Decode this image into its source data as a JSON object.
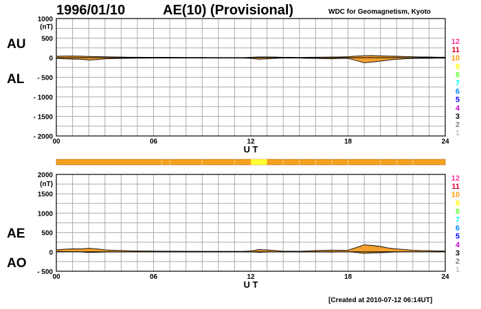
{
  "header": {
    "date": "1996/01/10",
    "title": "AE(10) (Provisional)",
    "org": "WDC for Geomagnetism, Kyoto",
    "created": "[Created at 2010-07-12 06:14UT]"
  },
  "colors": {
    "fill": "#f4a030",
    "grid": "#aaaaaa",
    "bar": "#f5a020",
    "bar_highlight": "#ffff33"
  },
  "legend_numbers": [
    {
      "label": "12",
      "color": "#ff3399"
    },
    {
      "label": "11",
      "color": "#e0002a"
    },
    {
      "label": "10",
      "color": "#ff9900"
    },
    {
      "label": "9",
      "color": "#ffff00"
    },
    {
      "label": "8",
      "color": "#66ff33"
    },
    {
      "label": "7",
      "color": "#00ffff"
    },
    {
      "label": "6",
      "color": "#0088ff"
    },
    {
      "label": "5",
      "color": "#0000ff"
    },
    {
      "label": "4",
      "color": "#cc00cc"
    },
    {
      "label": "3",
      "color": "#000000"
    },
    {
      "label": "2",
      "color": "#808080"
    },
    {
      "label": "1",
      "color": "#c0c0c0"
    }
  ],
  "chart_data": [
    {
      "type": "area",
      "series": [
        {
          "name": "AU",
          "values": [
            35,
            40,
            42,
            38,
            32,
            28,
            22,
            18,
            15,
            13,
            12,
            10,
            9,
            8,
            8,
            7,
            6,
            5,
            5,
            4,
            4,
            4,
            4,
            4,
            10,
            18,
            20,
            15,
            8,
            8,
            6,
            10,
            12,
            14,
            16,
            20,
            25,
            40,
            50,
            55,
            48,
            40,
            35,
            30,
            22,
            20,
            18,
            12,
            12
          ]
        },
        {
          "name": "AL",
          "values": [
            -15,
            -30,
            -35,
            -40,
            -60,
            -50,
            -30,
            -25,
            -20,
            -15,
            -12,
            -12,
            -10,
            -10,
            -10,
            -10,
            -10,
            -10,
            -8,
            -8,
            -8,
            -8,
            -8,
            -8,
            -15,
            -40,
            -30,
            -20,
            -10,
            -10,
            -10,
            -15,
            -20,
            -25,
            -30,
            -20,
            -20,
            -70,
            -130,
            -110,
            -90,
            -60,
            -40,
            -30,
            -20,
            -15,
            -15,
            -12,
            -12
          ]
        }
      ],
      "x": [
        0,
        0.5,
        1,
        1.5,
        2,
        2.5,
        3,
        3.5,
        4,
        4.5,
        5,
        5.5,
        6,
        6.5,
        7,
        7.5,
        8,
        8.5,
        9,
        9.5,
        10,
        10.5,
        11,
        11.5,
        12,
        12.5,
        13,
        13.5,
        14,
        14.5,
        15,
        15.5,
        16,
        16.5,
        17,
        17.5,
        18,
        18.5,
        19,
        19.5,
        20,
        20.5,
        21,
        21.5,
        22,
        22.5,
        23,
        23.5,
        24
      ],
      "yticks": [
        1000,
        500,
        0,
        -500,
        -1000,
        -1500,
        -2000
      ],
      "ytick_labels": [
        "1000",
        "500",
        "0",
        "- 500",
        "- 1000",
        "- 1500",
        "- 2000"
      ],
      "ylim": [
        -2000,
        1000
      ],
      "xticks": [
        0,
        6,
        12,
        18,
        24
      ],
      "xtick_labels": [
        "00",
        "06",
        "12",
        "18",
        "24"
      ],
      "xlim": [
        0,
        24
      ],
      "xlabel": "U T",
      "unit": "(nT)",
      "grid": true,
      "labels": {
        "top": "AU",
        "bottom": "AL"
      }
    },
    {
      "type": "area",
      "series": [
        {
          "name": "AE",
          "values": [
            50,
            70,
            77,
            78,
            92,
            78,
            52,
            43,
            35,
            28,
            24,
            22,
            19,
            18,
            18,
            17,
            16,
            15,
            13,
            12,
            12,
            12,
            12,
            12,
            25,
            58,
            50,
            35,
            18,
            18,
            16,
            25,
            32,
            39,
            46,
            40,
            45,
            110,
            180,
            165,
            138,
            100,
            75,
            60,
            42,
            35,
            33,
            24,
            24
          ]
        },
        {
          "name": "AO",
          "values": [
            10,
            5,
            3,
            -1,
            -14,
            -11,
            -4,
            -3,
            -2,
            -1,
            0,
            -1,
            0,
            -1,
            -1,
            -1,
            -2,
            -2,
            -1,
            -2,
            -2,
            -2,
            -2,
            -2,
            -2,
            -11,
            -5,
            -2,
            -1,
            -1,
            -2,
            -2,
            -4,
            -5,
            -7,
            0,
            2,
            -15,
            -40,
            -27,
            -21,
            -10,
            -2,
            0,
            1,
            2,
            1,
            0,
            0
          ]
        }
      ],
      "x": [
        0,
        0.5,
        1,
        1.5,
        2,
        2.5,
        3,
        3.5,
        4,
        4.5,
        5,
        5.5,
        6,
        6.5,
        7,
        7.5,
        8,
        8.5,
        9,
        9.5,
        10,
        10.5,
        11,
        11.5,
        12,
        12.5,
        13,
        13.5,
        14,
        14.5,
        15,
        15.5,
        16,
        16.5,
        17,
        17.5,
        18,
        18.5,
        19,
        19.5,
        20,
        20.5,
        21,
        21.5,
        22,
        22.5,
        23,
        23.5,
        24
      ],
      "yticks": [
        2000,
        1500,
        1000,
        500,
        0,
        -500
      ],
      "ytick_labels": [
        "2000",
        "1500",
        "1000",
        "500",
        "0",
        "- 500"
      ],
      "ylim": [
        -500,
        2000
      ],
      "xticks": [
        0,
        6,
        12,
        18,
        24
      ],
      "xtick_labels": [
        "00",
        "06",
        "12",
        "18",
        "24"
      ],
      "xlim": [
        0,
        24
      ],
      "xlabel": "U T",
      "unit": "(nT)",
      "grid": true,
      "labels": {
        "top": "AE",
        "bottom": "AO"
      }
    }
  ]
}
